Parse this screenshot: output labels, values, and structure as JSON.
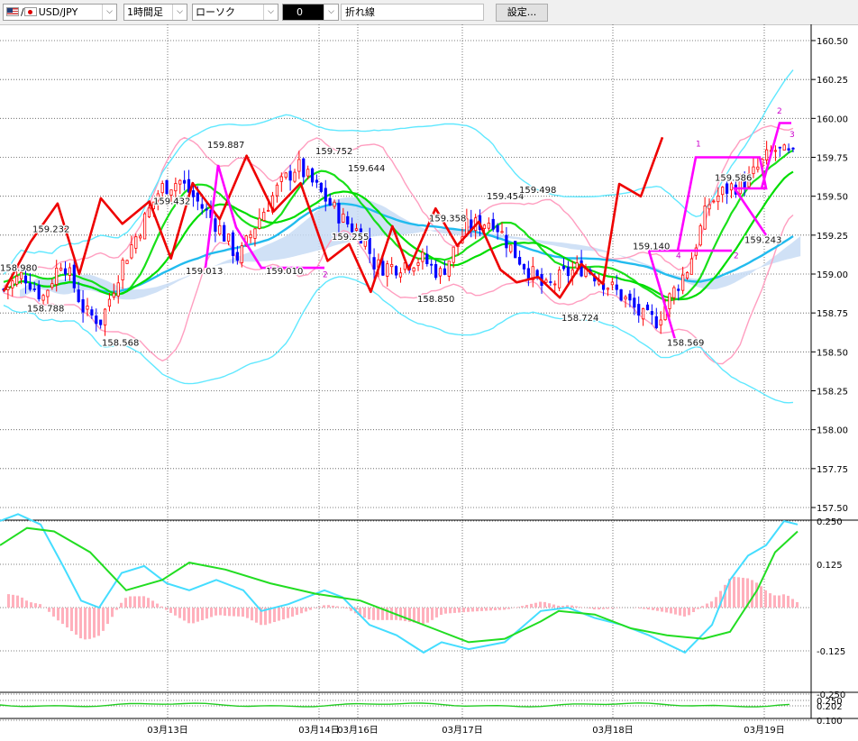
{
  "toolbar": {
    "pair_label": "USD/JPY",
    "separator": "/",
    "timeframe_label": "1時間足",
    "chart_type_label": "ローソク",
    "indicator_label": "0",
    "line_label": "折れ線",
    "settings_label": "設定..."
  },
  "chart_data": [
    {
      "type": "candlestick",
      "title": "",
      "y_ticks": [
        "160.50",
        "160.25",
        "160.00",
        "159.75",
        "159.50",
        "159.25",
        "159.00",
        "158.75",
        "158.50",
        "158.25",
        "158.00",
        "157.75",
        "157.50"
      ],
      "ylim": [
        157.5,
        160.5
      ],
      "x_labels": [
        "03月13日",
        "03月14日",
        "03月16日",
        "03月17日",
        "03月18日",
        "03月19日"
      ],
      "price_labels": [
        "159.887",
        "159.752",
        "159.644",
        "159.432",
        "159.454",
        "159.498",
        "159.358",
        "159.232",
        "159.255",
        "159.140",
        "159.586",
        "159.243",
        "158.980",
        "158.788",
        "159.013",
        "159.010",
        "158.850",
        "158.724",
        "158.568",
        "158.569"
      ],
      "wave_labels": [
        "1",
        "2",
        "3",
        "4",
        "2",
        "2"
      ],
      "grid": true,
      "series_colors": {
        "candle_up": "#ff0000",
        "candle_down": "#0000ff",
        "ichimoku_cloud": "#c8dcf5",
        "bollinger_inner": "#ff9ec0",
        "bollinger_outer": "#60e8ff",
        "moving_average_fast": "#00dd00",
        "moving_average_slow": "#22bbee",
        "overlay_line": "#ee0000",
        "trend_lines": "#ff00ff"
      }
    },
    {
      "type": "macd",
      "y_ticks": [
        "0.250",
        "0.125",
        "-0.125",
        "-0.250"
      ],
      "ylim": [
        -0.25,
        0.25
      ],
      "series_colors": {
        "macd": "#44ddff",
        "signal": "#22dd22",
        "histogram": "#ffb0bc"
      }
    },
    {
      "type": "line",
      "y_ticks": [
        "0.250",
        "0.202",
        "0.100"
      ],
      "series_colors": {
        "line": "#22cc22"
      }
    }
  ]
}
